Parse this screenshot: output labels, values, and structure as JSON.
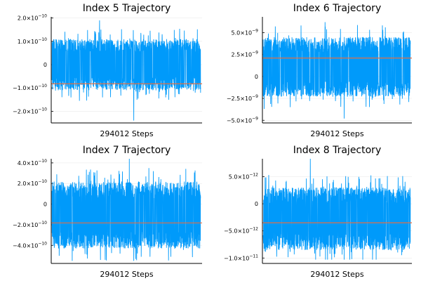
{
  "chart_data": [
    {
      "type": "line",
      "title": "Index 5 Trajectory",
      "xlabel": "294012 Steps",
      "ylabel": "",
      "yticks": [
        {
          "value": 2e-10,
          "mant": "2.0",
          "exp": "−10"
        },
        {
          "value": 1e-10,
          "mant": "1.0",
          "exp": "−10"
        },
        {
          "value": 0,
          "mant": "0",
          "exp": ""
        },
        {
          "value": -1e-10,
          "mant": "−1.0",
          "exp": "−10"
        },
        {
          "value": -2e-10,
          "mant": "−2.0",
          "exp": "−10"
        }
      ],
      "ylim": [
        -2.5e-10,
        2.05e-10
      ],
      "xlim": [
        0,
        294012
      ],
      "grid": true,
      "legend": "none",
      "series": [
        {
          "band": [
            -1e-10,
            1e-10
          ],
          "upper_peak": 1.9e-10,
          "lower_peak": -2.4e-10
        }
      ],
      "hline": -8.2e-11,
      "colors": {
        "series": "#009AFA",
        "hline": "#E26F46"
      }
    },
    {
      "type": "line",
      "title": "Index 6 Trajectory",
      "xlabel": "294012 Steps",
      "ylabel": "",
      "yticks": [
        {
          "value": 5e-09,
          "mant": "5.0",
          "exp": "−9"
        },
        {
          "value": 2.5e-09,
          "mant": "2.5",
          "exp": "−9"
        },
        {
          "value": 0,
          "mant": "0",
          "exp": ""
        },
        {
          "value": -2.5e-09,
          "mant": "−2.5",
          "exp": "−9"
        },
        {
          "value": -5e-09,
          "mant": "−5.0",
          "exp": "−9"
        }
      ],
      "ylim": [
        -5.3e-09,
        6.8e-09
      ],
      "xlim": [
        0,
        294012
      ],
      "grid": true,
      "legend": "none",
      "series": [
        {
          "band": [
            -2e-09,
            4.2e-09
          ],
          "upper_peak": 6.2e-09,
          "lower_peak": -4.8e-09
        }
      ],
      "hline": 2.1e-09,
      "colors": {
        "series": "#009AFA",
        "hline": "#E26F46"
      }
    },
    {
      "type": "line",
      "title": "Index 7 Trajectory",
      "xlabel": "294012 Steps",
      "ylabel": "",
      "yticks": [
        {
          "value": 4e-10,
          "mant": "4.0",
          "exp": "−10"
        },
        {
          "value": 2e-10,
          "mant": "2.0",
          "exp": "−10"
        },
        {
          "value": 0,
          "mant": "0",
          "exp": ""
        },
        {
          "value": -2e-10,
          "mant": "−2.0",
          "exp": "−10"
        },
        {
          "value": -4e-10,
          "mant": "−4.0",
          "exp": "−10"
        }
      ],
      "ylim": [
        -5.75e-10,
        4.4e-10
      ],
      "xlim": [
        0,
        294012
      ],
      "grid": true,
      "legend": "none",
      "series": [
        {
          "band": [
            -4e-10,
            1.9e-10
          ],
          "upper_peak": 4.4e-10,
          "lower_peak": -5.5e-10
        }
      ],
      "hline": -1.82e-10,
      "colors": {
        "series": "#009AFA",
        "hline": "#E26F46"
      }
    },
    {
      "type": "line",
      "title": "Index 8 Trajectory",
      "xlabel": "294012 Steps",
      "ylabel": "",
      "yticks": [
        {
          "value": 5e-12,
          "mant": "5.0",
          "exp": "−12"
        },
        {
          "value": 0,
          "mant": "0",
          "exp": ""
        },
        {
          "value": -5e-12,
          "mant": "−5.0",
          "exp": "−12"
        },
        {
          "value": -1e-11,
          "mant": "−1.0",
          "exp": "−11"
        }
      ],
      "ylim": [
        -1.1e-11,
        8.3e-12
      ],
      "xlim": [
        0,
        294012
      ],
      "grid": true,
      "legend": "none",
      "series": [
        {
          "band": [
            -8e-12,
            2.5e-12
          ],
          "upper_peak": 8.3e-12,
          "lower_peak": -1.03e-11
        }
      ],
      "hline": -3.5e-12,
      "colors": {
        "series": "#009AFA",
        "hline": "#E26F46"
      }
    }
  ]
}
